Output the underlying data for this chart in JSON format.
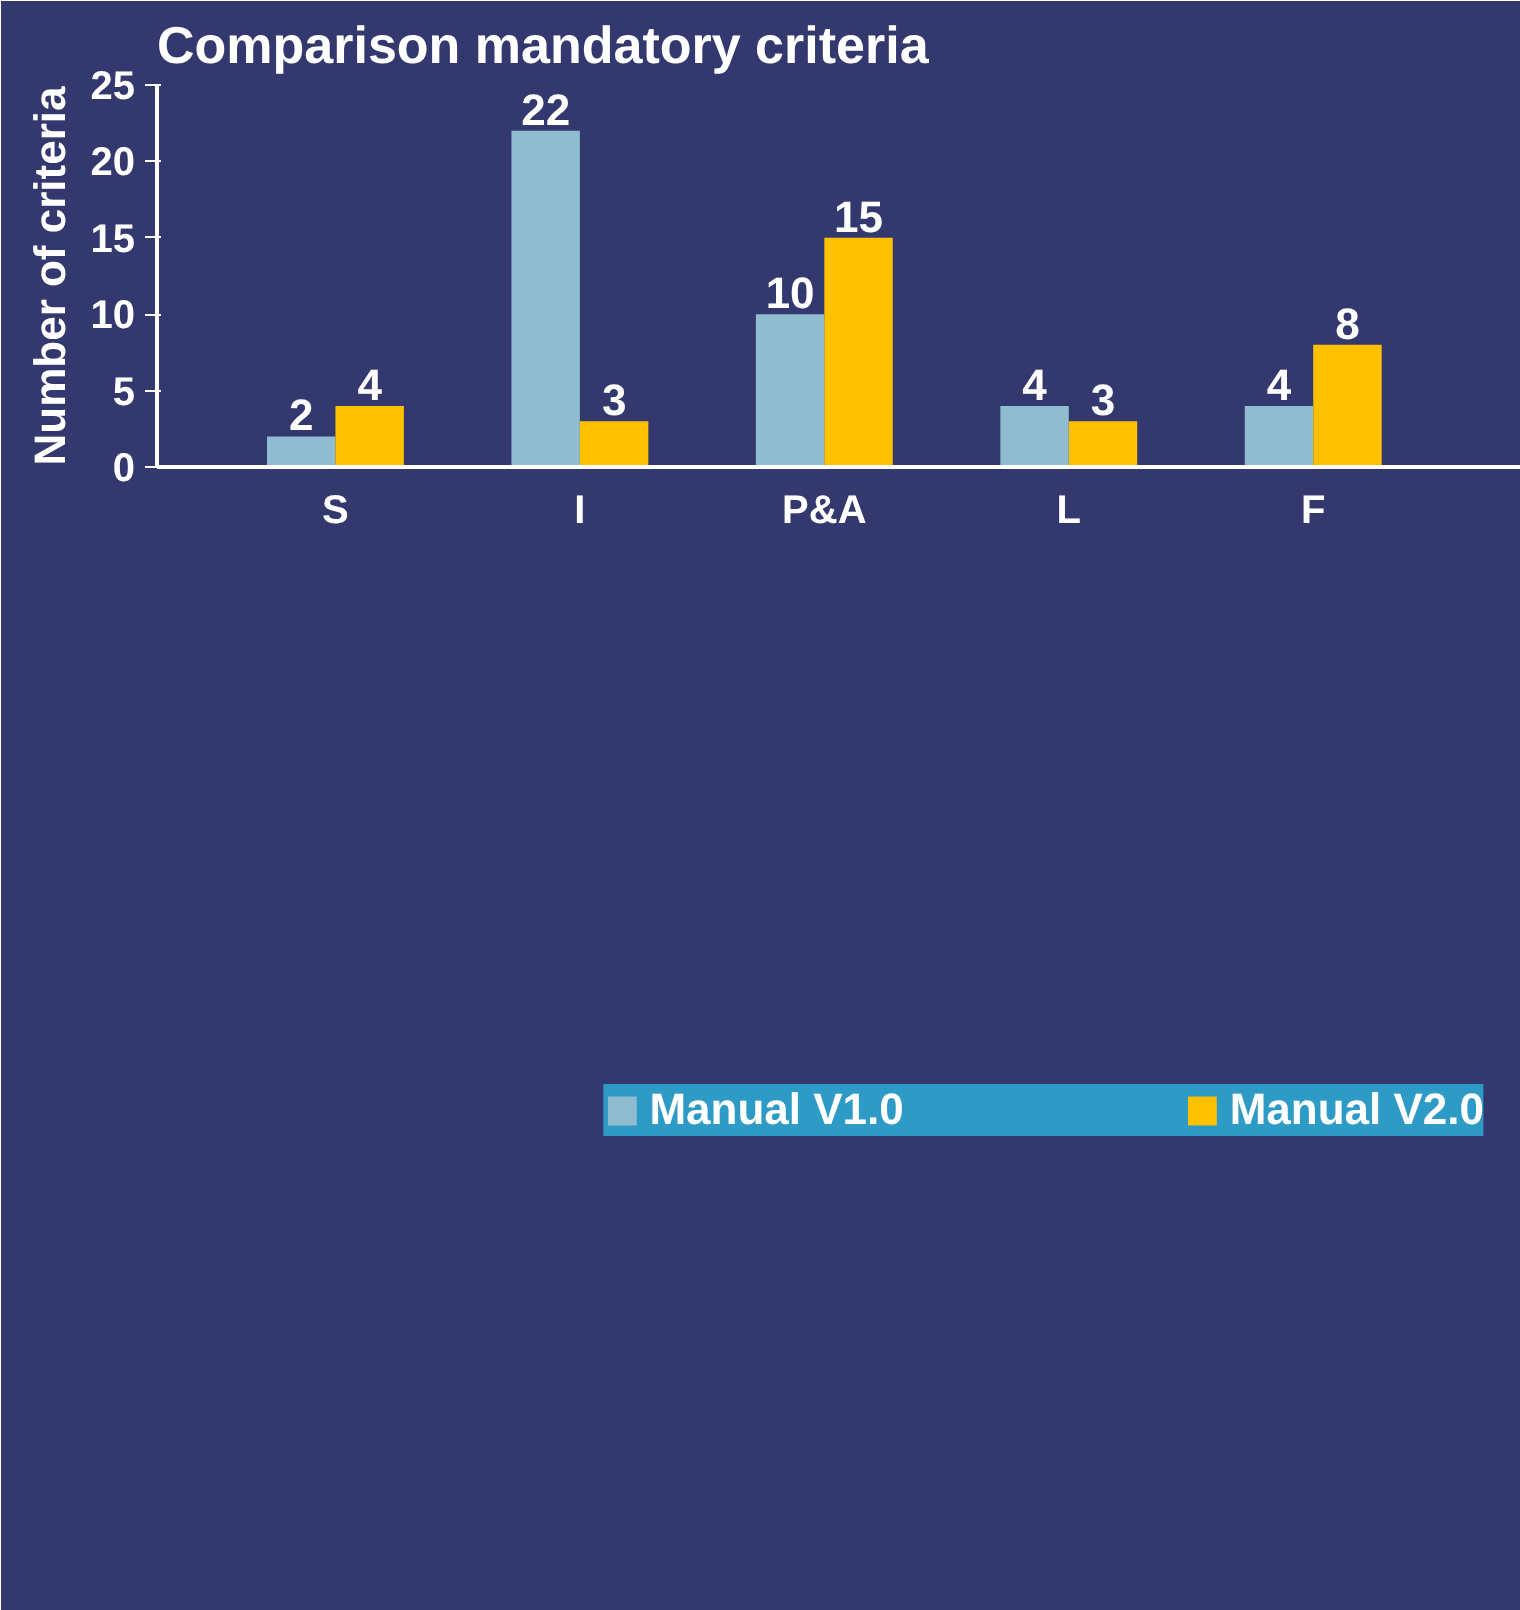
{
  "chart_data": {
    "type": "bar",
    "title": "Comparison mandatory criteria",
    "ylabel": "Number of criteria",
    "categories": [
      "S",
      "I",
      "P&A",
      "L",
      "F"
    ],
    "series": [
      {
        "name": "Manual V1.0",
        "color": "#8fbccf",
        "values": [
          2,
          22,
          10,
          4,
          4
        ]
      },
      {
        "name": "Manual V2.0",
        "color": "#ffc000",
        "values": [
          4,
          3,
          15,
          3,
          8
        ]
      }
    ],
    "ylim": [
      0,
      25
    ],
    "yticks": [
      0,
      5,
      10,
      15,
      20,
      25
    ],
    "grid": false,
    "legend": "bottom",
    "data_labels": true
  }
}
